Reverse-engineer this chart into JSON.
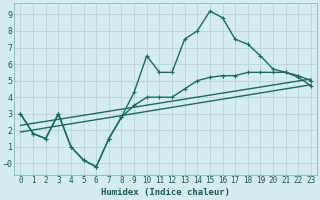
{
  "xlabel": "Humidex (Indice chaleur)",
  "bg_color": "#d5eeed",
  "line_color": "#1a6b5a",
  "xlim": [
    -0.5,
    23.5
  ],
  "ylim": [
    -0.7,
    9.7
  ],
  "xticks": [
    0,
    1,
    2,
    3,
    4,
    5,
    6,
    7,
    8,
    9,
    10,
    11,
    12,
    13,
    14,
    15,
    16,
    17,
    18,
    19,
    20,
    21,
    22,
    23
  ],
  "yticks": [
    0,
    1,
    2,
    3,
    4,
    5,
    6,
    7,
    8,
    9
  ],
  "line1_x": [
    0,
    1,
    2,
    3,
    4,
    5,
    6,
    7,
    8,
    9,
    10,
    11,
    12,
    13,
    14,
    15,
    16,
    17,
    18,
    19,
    20,
    21,
    22,
    23
  ],
  "line1_y": [
    3.0,
    1.8,
    1.5,
    3.0,
    1.0,
    0.2,
    -0.2,
    1.5,
    2.8,
    4.3,
    6.5,
    5.5,
    5.5,
    7.5,
    8.0,
    9.2,
    8.8,
    7.5,
    7.2,
    6.5,
    5.7,
    5.5,
    5.2,
    4.7
  ],
  "line2_x": [
    0,
    1,
    2,
    3,
    4,
    5,
    6,
    7,
    8,
    9,
    10,
    11,
    12,
    13,
    14,
    15,
    16,
    17,
    18,
    19,
    20,
    21,
    22,
    23
  ],
  "line2_y": [
    3.0,
    1.8,
    1.5,
    3.0,
    1.0,
    0.2,
    -0.2,
    1.5,
    2.8,
    3.5,
    4.0,
    4.0,
    4.0,
    4.5,
    5.0,
    5.2,
    5.3,
    5.3,
    5.5,
    5.5,
    5.5,
    5.5,
    5.3,
    5.0
  ],
  "line3_x": [
    0,
    23
  ],
  "line3_y": [
    2.3,
    5.1
  ],
  "line4_x": [
    0,
    23
  ],
  "line4_y": [
    1.9,
    4.75
  ],
  "grid_color": "#b8d4d4",
  "font_color": "#1a5a50",
  "tick_fontsize": 5.5,
  "xlabel_fontsize": 6.5
}
